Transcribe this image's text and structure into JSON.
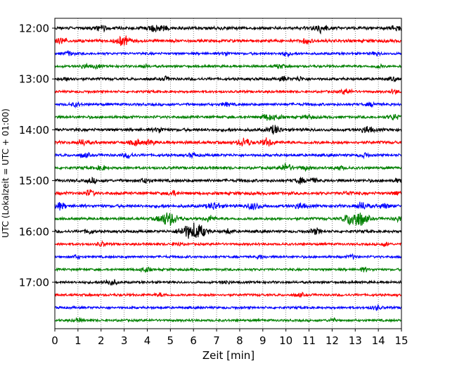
{
  "chart_data": {
    "type": "line",
    "subtype": "helicorder",
    "xlabel": "Zeit  [min]",
    "ylabel": "UTC (Lokalzeit = UTC + 01:00)",
    "xlim": [
      0,
      15
    ],
    "x_ticks": [
      0,
      1,
      2,
      3,
      4,
      5,
      6,
      7,
      8,
      9,
      10,
      11,
      12,
      13,
      14,
      15
    ],
    "y_tick_labels": [
      "12:00",
      "13:00",
      "14:00",
      "15:00",
      "16:00",
      "17:00"
    ],
    "grid": "vertical dotted lines at each minute",
    "start_time": "12:00",
    "minutes_per_line": 15,
    "line_colors": [
      "#000000",
      "#ff0000",
      "#0000ff",
      "#008000"
    ],
    "traces": [
      {
        "start": "12:00",
        "amplitude": 1.0,
        "bursts": [
          [
            2.0,
            0.6
          ],
          [
            4.3,
            0.8
          ],
          [
            4.7,
            0.5
          ],
          [
            11.5,
            1.0
          ],
          [
            14.8,
            0.7
          ]
        ]
      },
      {
        "start": "12:15",
        "amplitude": 1.0,
        "bursts": [
          [
            0.3,
            0.6
          ],
          [
            2.8,
            0.8
          ],
          [
            3.1,
            0.6
          ],
          [
            10.9,
            0.5
          ]
        ]
      },
      {
        "start": "12:30",
        "amplitude": 0.8,
        "bursts": [
          [
            0.6,
            0.5
          ],
          [
            7.4,
            0.4
          ],
          [
            10.0,
            0.5
          ],
          [
            13.9,
            0.4
          ]
        ]
      },
      {
        "start": "12:45",
        "amplitude": 0.8,
        "bursts": [
          [
            1.3,
            0.5
          ],
          [
            1.8,
            0.4
          ],
          [
            3.9,
            0.4
          ],
          [
            9.7,
            0.5
          ],
          [
            14.0,
            0.4
          ]
        ]
      },
      {
        "start": "13:00",
        "amplitude": 0.9,
        "bursts": [
          [
            0.6,
            0.5
          ],
          [
            4.8,
            0.4
          ],
          [
            9.9,
            0.4
          ],
          [
            10.6,
            0.4
          ],
          [
            14.7,
            0.4
          ]
        ]
      },
      {
        "start": "13:15",
        "amplitude": 0.8,
        "bursts": [
          [
            12.6,
            0.6
          ],
          [
            14.7,
            0.4
          ]
        ]
      },
      {
        "start": "13:30",
        "amplitude": 0.9,
        "bursts": [
          [
            0.9,
            0.4
          ],
          [
            7.4,
            0.4
          ],
          [
            13.7,
            0.4
          ]
        ]
      },
      {
        "start": "13:45",
        "amplitude": 0.9,
        "bursts": [
          [
            9.2,
            0.7
          ],
          [
            9.6,
            0.5
          ],
          [
            11.0,
            0.5
          ],
          [
            14.7,
            0.7
          ]
        ]
      },
      {
        "start": "14:00",
        "amplitude": 1.0,
        "bursts": [
          [
            4.5,
            0.5
          ],
          [
            9.5,
            0.9
          ],
          [
            13.5,
            0.8
          ]
        ]
      },
      {
        "start": "14:15",
        "amplitude": 1.0,
        "bursts": [
          [
            1.2,
            0.6
          ],
          [
            3.5,
            0.7
          ],
          [
            4.1,
            0.5
          ],
          [
            8.2,
            0.9
          ],
          [
            9.2,
            0.8
          ]
        ]
      },
      {
        "start": "14:30",
        "amplitude": 0.9,
        "bursts": [
          [
            1.3,
            0.5
          ],
          [
            3.2,
            0.6
          ],
          [
            6.0,
            0.5
          ],
          [
            13.4,
            0.5
          ]
        ]
      },
      {
        "start": "14:45",
        "amplitude": 0.9,
        "bursts": [
          [
            2.0,
            0.5
          ],
          [
            10.0,
            0.8
          ],
          [
            10.8,
            0.5
          ],
          [
            12.3,
            0.5
          ]
        ]
      },
      {
        "start": "15:00",
        "amplitude": 1.0,
        "bursts": [
          [
            1.6,
            0.5
          ],
          [
            3.9,
            0.5
          ],
          [
            10.6,
            0.6
          ],
          [
            11.2,
            0.5
          ],
          [
            14.9,
            0.5
          ]
        ]
      },
      {
        "start": "15:15",
        "amplitude": 1.0,
        "bursts": [
          [
            1.5,
            0.6
          ],
          [
            5.1,
            0.5
          ],
          [
            12.7,
            0.4
          ],
          [
            14.8,
            0.5
          ]
        ]
      },
      {
        "start": "15:30",
        "amplitude": 1.0,
        "bursts": [
          [
            0.2,
            0.7
          ],
          [
            6.9,
            0.8
          ],
          [
            8.6,
            0.9
          ],
          [
            10.6,
            0.7
          ],
          [
            13.3,
            0.8
          ],
          [
            14.3,
            0.5
          ]
        ]
      },
      {
        "start": "15:45",
        "amplitude": 0.9,
        "bursts": [
          [
            4.9,
            1.6
          ],
          [
            6.7,
            0.6
          ],
          [
            12.8,
            1.2
          ],
          [
            13.2,
            1.4
          ],
          [
            14.9,
            0.6
          ]
        ]
      },
      {
        "start": "16:00",
        "amplitude": 0.9,
        "bursts": [
          [
            1.5,
            0.5
          ],
          [
            5.7,
            1.4
          ],
          [
            6.2,
            1.5
          ],
          [
            7.5,
            0.5
          ],
          [
            11.3,
            0.7
          ]
        ]
      },
      {
        "start": "16:15",
        "amplitude": 0.8,
        "bursts": [
          [
            2.0,
            0.4
          ],
          [
            5.3,
            0.4
          ],
          [
            14.3,
            0.4
          ]
        ]
      },
      {
        "start": "16:30",
        "amplitude": 0.8,
        "bursts": [
          [
            0.9,
            0.4
          ],
          [
            8.9,
            0.4
          ],
          [
            12.9,
            0.4
          ]
        ]
      },
      {
        "start": "16:45",
        "amplitude": 0.8,
        "bursts": [
          [
            3.9,
            0.6
          ],
          [
            13.4,
            0.4
          ]
        ]
      },
      {
        "start": "17:00",
        "amplitude": 0.8,
        "bursts": [
          [
            2.4,
            0.8
          ],
          [
            7.4,
            0.4
          ]
        ]
      },
      {
        "start": "17:15",
        "amplitude": 0.8,
        "bursts": [
          [
            4.6,
            0.4
          ],
          [
            10.6,
            0.4
          ]
        ]
      },
      {
        "start": "17:30",
        "amplitude": 0.8,
        "bursts": [
          [
            13.9,
            0.5
          ]
        ]
      },
      {
        "start": "17:45",
        "amplitude": 0.8,
        "bursts": [
          [
            1.0,
            0.4
          ],
          [
            12.0,
            0.4
          ]
        ]
      }
    ]
  }
}
